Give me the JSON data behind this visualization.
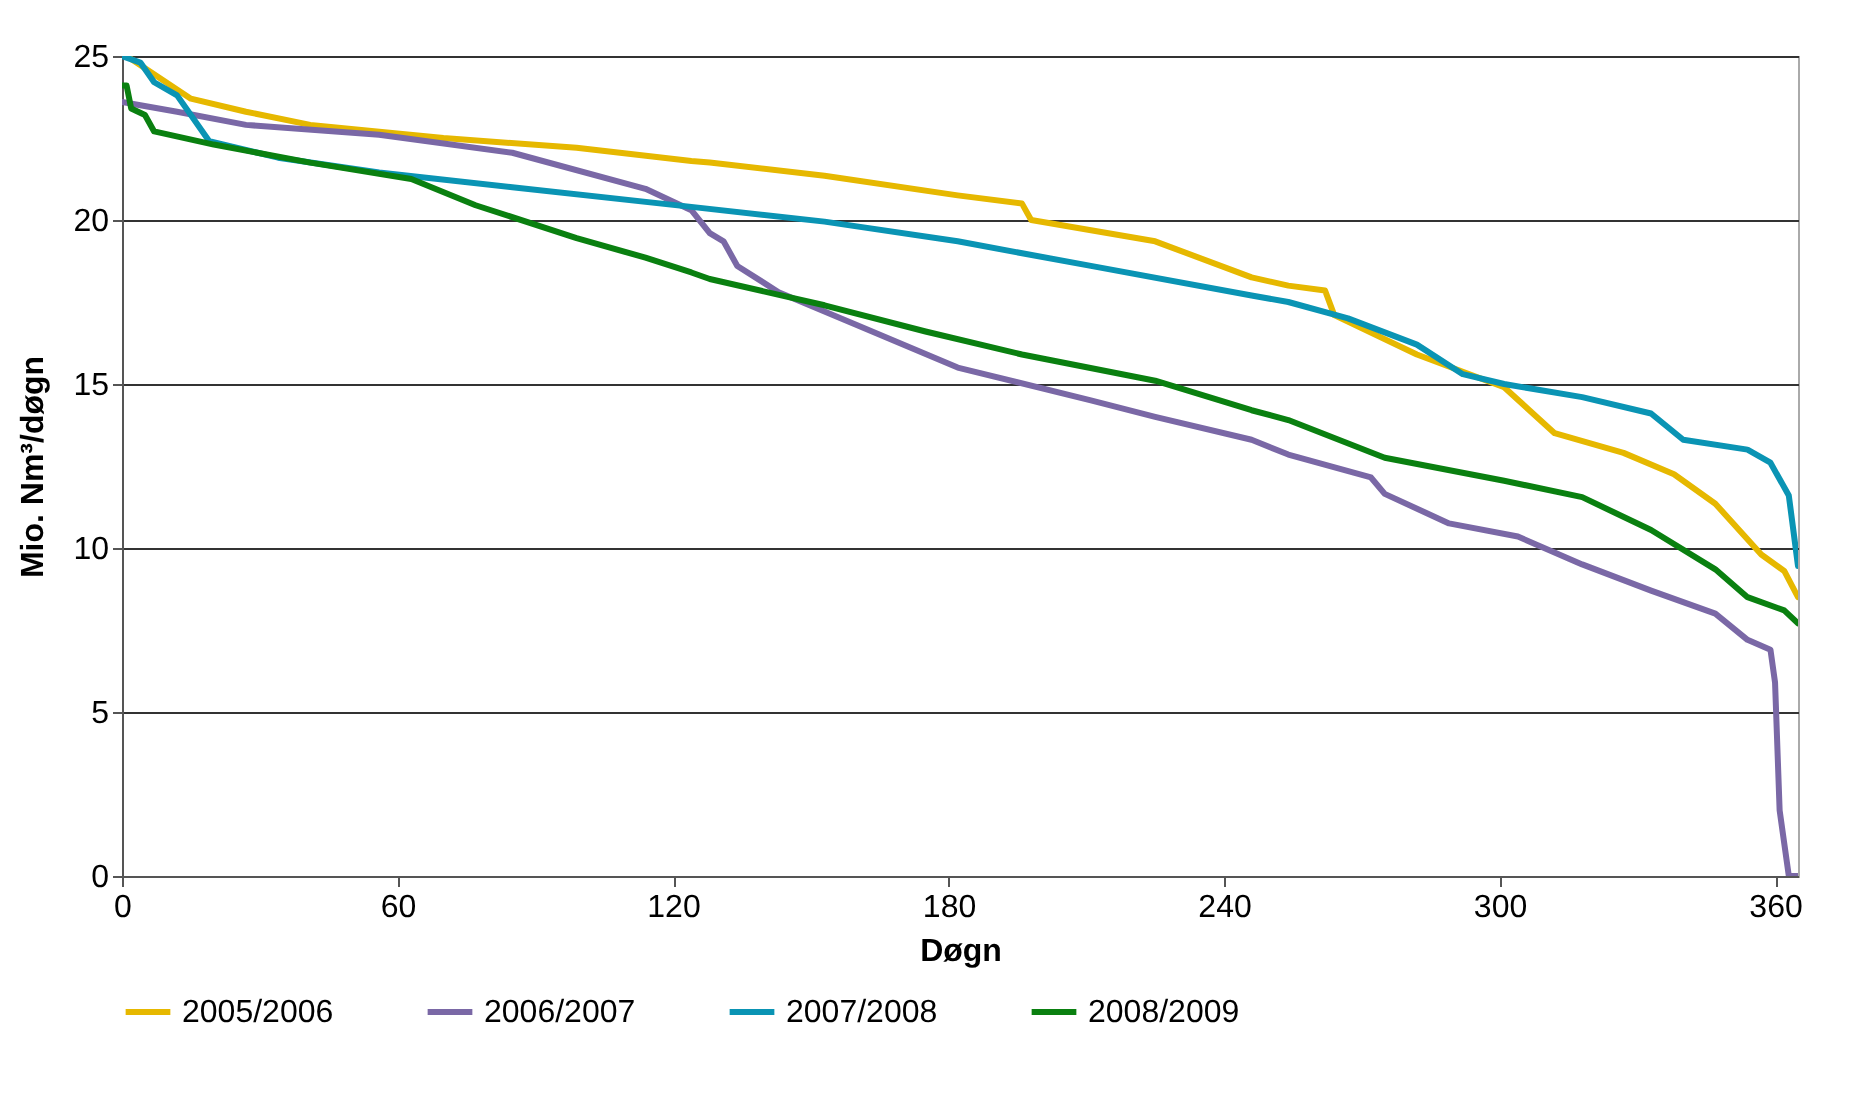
{
  "chart_data": {
    "type": "line",
    "xlabel": "Døgn",
    "ylabel": "Mio. Nm³/døgn",
    "xlim": [
      0,
      365
    ],
    "xticks": [
      0,
      60,
      120,
      180,
      240,
      300,
      360
    ],
    "ylim": [
      0,
      25
    ],
    "yticks": [
      0,
      5,
      10,
      15,
      20,
      25
    ],
    "grid": "y",
    "legend": "bottom",
    "line_style": "solid",
    "marker": "none",
    "series": [
      {
        "name": "2005/2006",
        "color": "#e6b800",
        "x": [
          0,
          1,
          15,
          27,
          41,
          70,
          99,
          124,
          128,
          153,
          182,
          196,
          198,
          225,
          246,
          254,
          262,
          264,
          282,
          301,
          312,
          327,
          338,
          347,
          357,
          362,
          365
        ],
        "values": [
          25,
          25,
          23.7,
          23.3,
          22.9,
          22.5,
          22.2,
          21.8,
          21.75,
          21.35,
          20.75,
          20.5,
          20,
          19.35,
          18.25,
          18,
          17.85,
          17.1,
          15.9,
          14.9,
          13.5,
          12.9,
          12.25,
          11.35,
          9.8,
          9.3,
          8.5
        ]
      },
      {
        "name": "2006/2007",
        "color": "#7a68a6",
        "x": [
          0,
          4,
          12,
          27,
          56,
          85,
          114,
          124,
          128,
          131,
          134,
          143,
          160,
          182,
          211,
          225,
          246,
          254,
          272,
          275,
          289,
          304,
          318,
          333,
          347,
          354,
          359,
          360,
          361,
          363,
          365
        ],
        "values": [
          23.6,
          23.5,
          23.3,
          22.9,
          22.6,
          22.05,
          20.95,
          20.3,
          19.6,
          19.35,
          18.6,
          17.8,
          16.8,
          15.5,
          14.5,
          14,
          13.3,
          12.85,
          12.15,
          11.65,
          10.75,
          10.35,
          9.5,
          8.7,
          8,
          7.2,
          6.9,
          5.9,
          2,
          0,
          0
        ]
      },
      {
        "name": "2007/2008",
        "color": "#0a94b4",
        "x": [
          0,
          4,
          7,
          12,
          19,
          34,
          56,
          85,
          124,
          153,
          182,
          211,
          246,
          254,
          267,
          282,
          292,
          301,
          318,
          333,
          340,
          354,
          359,
          363,
          365
        ],
        "values": [
          25,
          24.8,
          24.2,
          23.8,
          22.4,
          21.9,
          21.45,
          21,
          20.4,
          19.95,
          19.35,
          18.6,
          17.7,
          17.5,
          17,
          16.2,
          15.3,
          15,
          14.6,
          14.1,
          13.3,
          13,
          12.6,
          11.6,
          9.45
        ]
      },
      {
        "name": "2008/2009",
        "color": "#0a8010",
        "x": [
          0,
          1,
          2,
          5,
          7,
          20,
          41,
          63,
          77,
          99,
          114,
          124,
          128,
          153,
          175,
          196,
          225,
          246,
          254,
          275,
          301,
          318,
          333,
          347,
          354,
          362,
          365
        ],
        "values": [
          24.1,
          24.1,
          23.4,
          23.2,
          22.7,
          22.3,
          21.75,
          21.25,
          20.45,
          19.45,
          18.85,
          18.4,
          18.2,
          17.4,
          16.6,
          15.9,
          15.1,
          14.2,
          13.9,
          12.75,
          12.05,
          11.55,
          10.55,
          9.35,
          8.5,
          8.1,
          7.7
        ]
      }
    ]
  }
}
